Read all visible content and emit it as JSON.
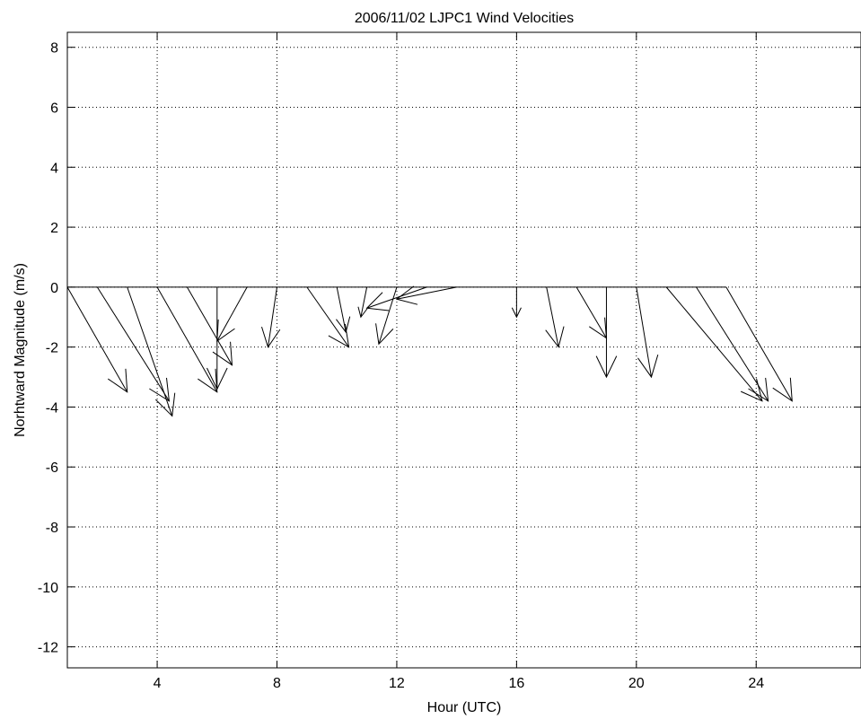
{
  "chart_data": {
    "type": "quiver",
    "title": "2006/11/02 LJPC1 Wind Velocities",
    "xlabel": "Hour (UTC)",
    "ylabel": "Norhtward Magnitude (m/s)",
    "xlim": [
      1,
      27.5
    ],
    "ylim": [
      -12.7,
      8.5
    ],
    "xticks": [
      4,
      8,
      12,
      16,
      20,
      24
    ],
    "yticks": [
      -12,
      -10,
      -8,
      -6,
      -4,
      -2,
      0,
      2,
      4,
      6,
      8
    ],
    "grid": true,
    "baseline_y": 0,
    "vectors": [
      {
        "x": 1,
        "u": 2.0,
        "v": -3.5
      },
      {
        "x": 2,
        "u": 2.4,
        "v": -3.8
      },
      {
        "x": 3,
        "u": 1.5,
        "v": -4.3
      },
      {
        "x": 4,
        "u": 2.0,
        "v": -3.5
      },
      {
        "x": 5,
        "u": 1.5,
        "v": -2.6
      },
      {
        "x": 6,
        "u": 0.0,
        "v": -3.4
      },
      {
        "x": 7,
        "u": -1.0,
        "v": -1.8
      },
      {
        "x": 8,
        "u": -0.3,
        "v": -2.0
      },
      {
        "x": 9,
        "u": 1.4,
        "v": -2.0
      },
      {
        "x": 10,
        "u": 0.3,
        "v": -1.5
      },
      {
        "x": 11,
        "u": -0.2,
        "v": -1.0
      },
      {
        "x": 12,
        "u": -0.6,
        "v": -1.9
      },
      {
        "x": 13,
        "u": -2.0,
        "v": -0.7
      },
      {
        "x": 14,
        "u": -2.0,
        "v": -0.4
      },
      {
        "x": 16,
        "u": 0.0,
        "v": -1.0
      },
      {
        "x": 17,
        "u": 0.4,
        "v": -2.0
      },
      {
        "x": 18,
        "u": 1.0,
        "v": -1.7
      },
      {
        "x": 19,
        "u": 0.0,
        "v": -3.0
      },
      {
        "x": 20,
        "u": 0.5,
        "v": -3.0
      },
      {
        "x": 21,
        "u": 3.2,
        "v": -3.8
      },
      {
        "x": 22,
        "u": 2.4,
        "v": -3.8
      },
      {
        "x": 23,
        "u": 2.2,
        "v": -3.8
      }
    ]
  }
}
